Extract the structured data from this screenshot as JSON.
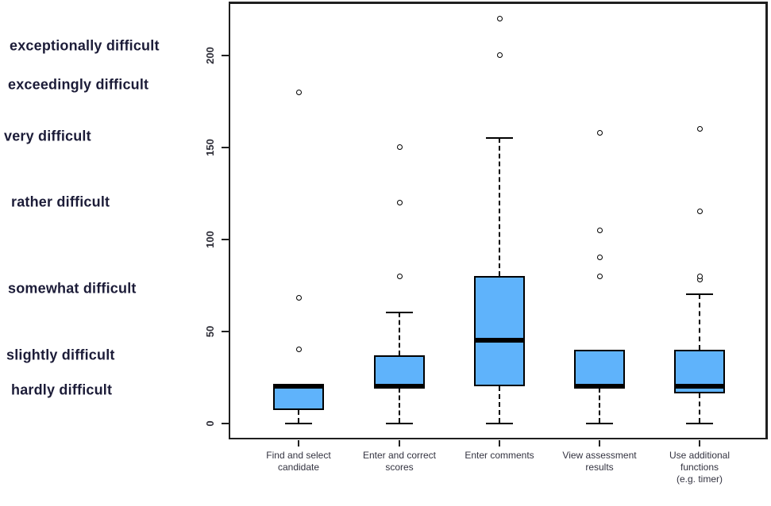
{
  "figure": {
    "kind": "boxplot-figure",
    "colors": {
      "box_fill": "#5FB3FB",
      "box_border": "#000000",
      "median": "#000000",
      "axis": "#1F1F1F",
      "anchor_text": "#1C1C38",
      "tick_text": "#2E2E38"
    }
  },
  "chart_data": {
    "type": "boxplot",
    "title": "",
    "xlabel": "",
    "ylabel": "",
    "grid": false,
    "legend": "none",
    "y_ticks": [
      0,
      50,
      100,
      150,
      200
    ],
    "ylim": [
      -9,
      229
    ],
    "categories": [
      "Find and select\ncandidate",
      "Enter and correct\nscores",
      "Enter comments",
      "View assessment\nresults",
      "Use additional\nfunctions\n(e.g. timer)"
    ],
    "series": [
      {
        "name": "Find and select candidate",
        "whisker_low": 0,
        "q1": 7,
        "median": 20,
        "q3": 21,
        "whisker_high": 21,
        "outliers": [
          40,
          68,
          180
        ]
      },
      {
        "name": "Enter and correct scores",
        "whisker_low": 0,
        "q1": 19,
        "median": 20,
        "q3": 37,
        "whisker_high": 60,
        "outliers": [
          80,
          120,
          150
        ]
      },
      {
        "name": "Enter comments",
        "whisker_low": 0,
        "q1": 20,
        "median": 45,
        "q3": 80,
        "whisker_high": 155,
        "outliers": [
          200,
          220
        ]
      },
      {
        "name": "View assessment results",
        "whisker_low": 0,
        "q1": 19,
        "median": 20,
        "q3": 40,
        "whisker_high": 40,
        "outliers": [
          80,
          90,
          105,
          158
        ]
      },
      {
        "name": "Use additional functions (e.g. timer)",
        "whisker_low": 0,
        "q1": 16,
        "median": 20,
        "q3": 40,
        "whisker_high": 70,
        "outliers": [
          78,
          80,
          115,
          160
        ]
      }
    ],
    "y_axis_anchors": [
      {
        "label": "exceptionally difficult",
        "value": 205
      },
      {
        "label": "exceedingly difficult",
        "value": 184
      },
      {
        "label": "very difficult",
        "value": 156
      },
      {
        "label": "rather difficult",
        "value": 120
      },
      {
        "label": "somewhat difficult",
        "value": 73
      },
      {
        "label": "slightly difficult",
        "value": 37
      },
      {
        "label": "hardly difficult",
        "value": 18
      }
    ]
  }
}
